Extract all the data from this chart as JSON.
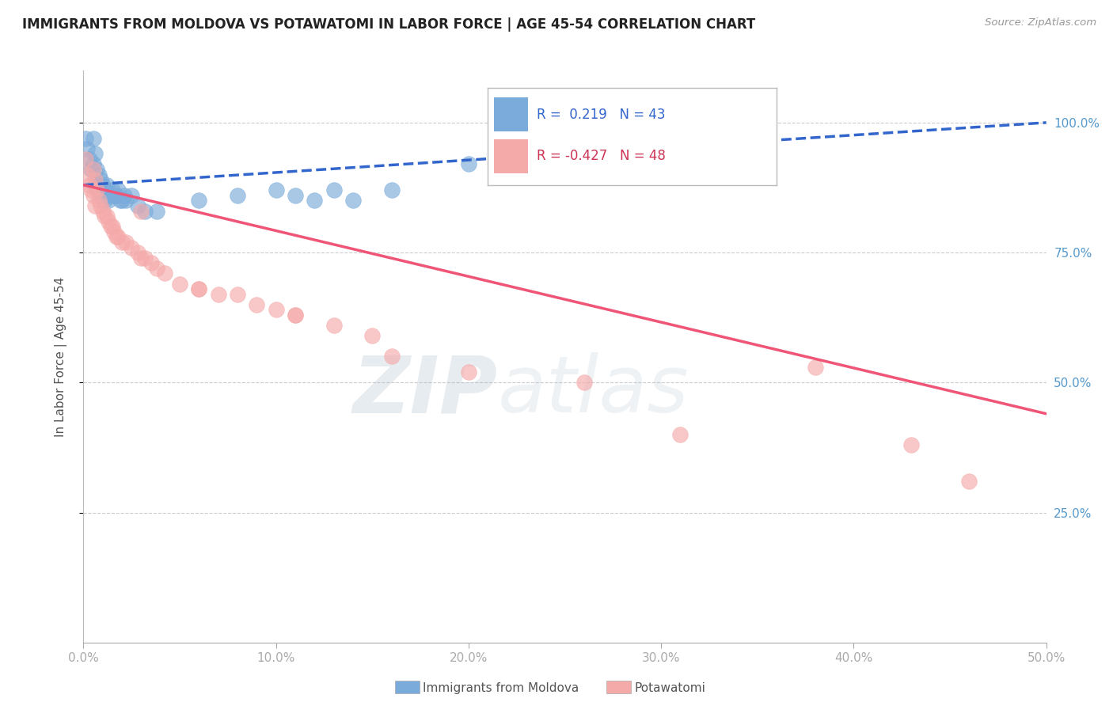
{
  "title": "IMMIGRANTS FROM MOLDOVA VS POTAWATOMI IN LABOR FORCE | AGE 45-54 CORRELATION CHART",
  "source": "Source: ZipAtlas.com",
  "ylabel": "In Labor Force | Age 45-54",
  "xlim": [
    0.0,
    0.5
  ],
  "ylim": [
    0.0,
    1.1
  ],
  "xtick_labels": [
    "0.0%",
    "10.0%",
    "20.0%",
    "30.0%",
    "40.0%",
    "50.0%"
  ],
  "xtick_values": [
    0.0,
    0.1,
    0.2,
    0.3,
    0.4,
    0.5
  ],
  "ytick_right_labels": [
    "25.0%",
    "50.0%",
    "75.0%",
    "100.0%"
  ],
  "ytick_right_values": [
    0.25,
    0.5,
    0.75,
    1.0
  ],
  "legend_r1": "R =  0.219",
  "legend_n1": "N = 43",
  "legend_r2": "R = -0.427",
  "legend_n2": "N = 48",
  "blue_color": "#7AABDA",
  "pink_color": "#F5AAAA",
  "blue_line_color": "#3366CC",
  "pink_line_color": "#EE5577",
  "watermark_zip": "ZIP",
  "watermark_atlas": "atlas",
  "moldova_x": [
    0.001,
    0.002,
    0.003,
    0.004,
    0.005,
    0.005,
    0.006,
    0.006,
    0.007,
    0.007,
    0.008,
    0.008,
    0.009,
    0.009,
    0.01,
    0.01,
    0.011,
    0.011,
    0.012,
    0.012,
    0.013,
    0.014,
    0.015,
    0.016,
    0.017,
    0.018,
    0.019,
    0.02,
    0.021,
    0.022,
    0.025,
    0.028,
    0.032,
    0.038,
    0.06,
    0.08,
    0.1,
    0.11,
    0.12,
    0.13,
    0.14,
    0.16,
    0.2
  ],
  "moldova_y": [
    0.97,
    0.95,
    0.93,
    0.91,
    0.97,
    0.92,
    0.94,
    0.88,
    0.91,
    0.88,
    0.9,
    0.87,
    0.89,
    0.86,
    0.88,
    0.86,
    0.87,
    0.85,
    0.88,
    0.86,
    0.85,
    0.86,
    0.87,
    0.86,
    0.86,
    0.87,
    0.85,
    0.85,
    0.86,
    0.85,
    0.86,
    0.84,
    0.83,
    0.83,
    0.85,
    0.86,
    0.87,
    0.86,
    0.85,
    0.87,
    0.85,
    0.87,
    0.92
  ],
  "potawatomi_x": [
    0.001,
    0.002,
    0.003,
    0.004,
    0.005,
    0.005,
    0.006,
    0.006,
    0.007,
    0.008,
    0.009,
    0.01,
    0.011,
    0.012,
    0.013,
    0.014,
    0.015,
    0.016,
    0.017,
    0.018,
    0.02,
    0.022,
    0.025,
    0.028,
    0.03,
    0.032,
    0.035,
    0.038,
    0.042,
    0.05,
    0.06,
    0.07,
    0.08,
    0.09,
    0.1,
    0.11,
    0.13,
    0.15,
    0.03,
    0.06,
    0.11,
    0.16,
    0.2,
    0.26,
    0.31,
    0.38,
    0.43,
    0.46
  ],
  "potawatomi_y": [
    0.93,
    0.9,
    0.88,
    0.87,
    0.91,
    0.86,
    0.89,
    0.84,
    0.87,
    0.85,
    0.84,
    0.83,
    0.82,
    0.82,
    0.81,
    0.8,
    0.8,
    0.79,
    0.78,
    0.78,
    0.77,
    0.77,
    0.76,
    0.75,
    0.74,
    0.74,
    0.73,
    0.72,
    0.71,
    0.69,
    0.68,
    0.67,
    0.67,
    0.65,
    0.64,
    0.63,
    0.61,
    0.59,
    0.83,
    0.68,
    0.63,
    0.55,
    0.52,
    0.5,
    0.4,
    0.53,
    0.38,
    0.31
  ],
  "blue_trend_x": [
    0.0,
    0.5
  ],
  "blue_trend_y": [
    0.88,
    1.0
  ],
  "pink_trend_x": [
    0.0,
    0.5
  ],
  "pink_trend_y": [
    0.88,
    0.44
  ]
}
